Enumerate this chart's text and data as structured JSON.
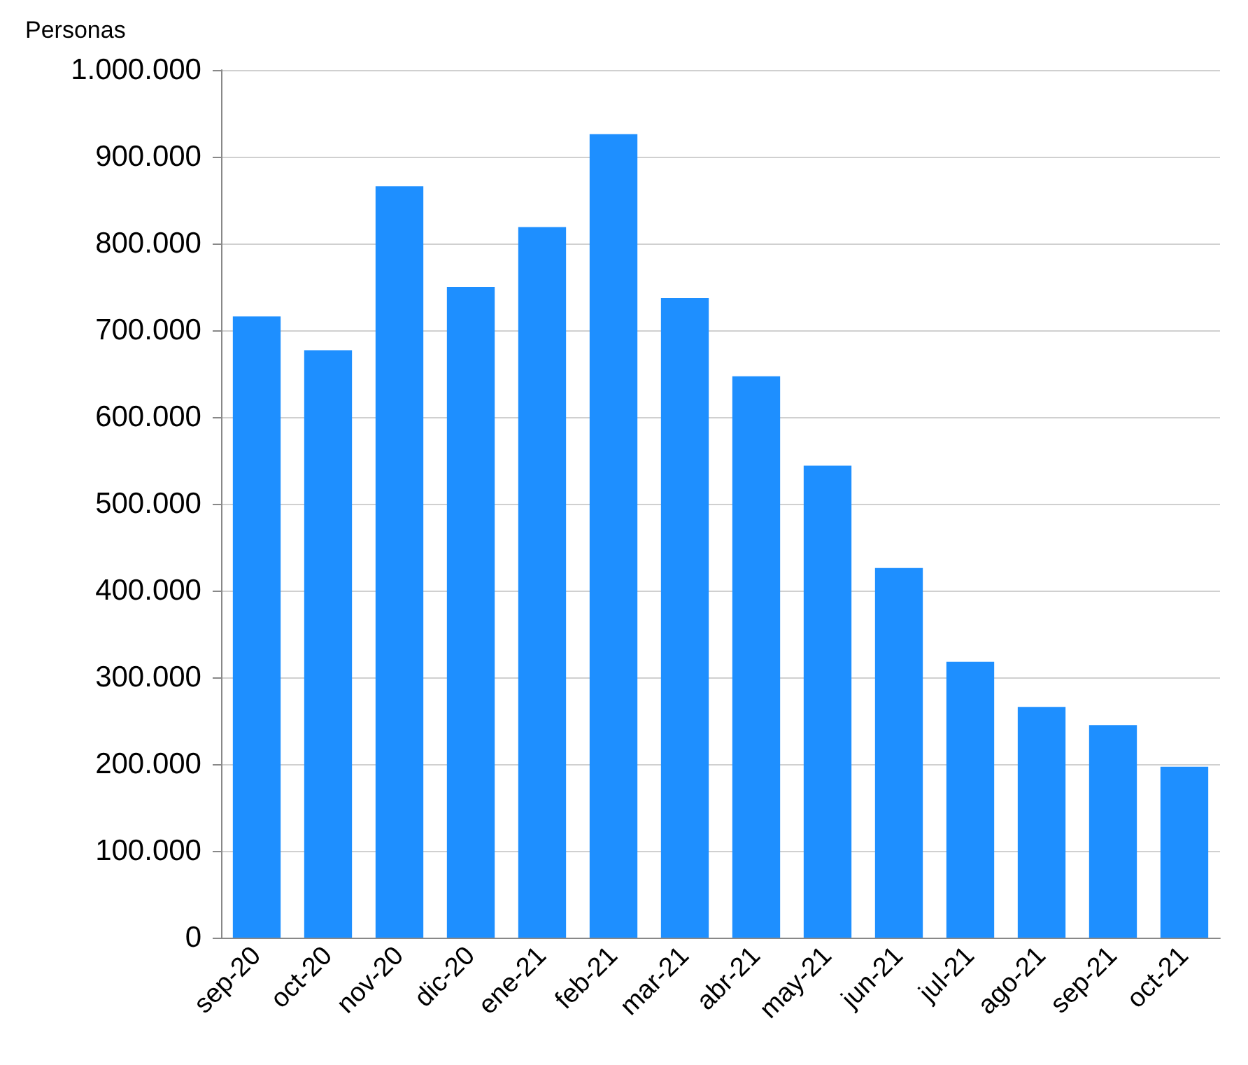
{
  "chart_data": {
    "type": "bar",
    "ylabel": "Personas",
    "categories": [
      "sep-20",
      "oct-20",
      "nov-20",
      "dic-20",
      "ene-21",
      "feb-21",
      "mar-21",
      "abr-21",
      "may-21",
      "jun-21",
      "jul-21",
      "ago-21",
      "sep-21",
      "oct-21"
    ],
    "values": [
      716000,
      677000,
      866000,
      750000,
      819000,
      926000,
      737000,
      647000,
      544000,
      426000,
      318000,
      266000,
      245000,
      197000
    ],
    "color": "#1e8fff",
    "ylim": [
      0,
      1000000
    ],
    "yticks": [
      {
        "value": 0,
        "label": "0"
      },
      {
        "value": 100000,
        "label": "100.000"
      },
      {
        "value": 200000,
        "label": "200.000"
      },
      {
        "value": 300000,
        "label": "300.000"
      },
      {
        "value": 400000,
        "label": "400.000"
      },
      {
        "value": 500000,
        "label": "500.000"
      },
      {
        "value": 600000,
        "label": "600.000"
      },
      {
        "value": 700000,
        "label": "700.000"
      },
      {
        "value": 800000,
        "label": "800.000"
      },
      {
        "value": 900000,
        "label": "900.000"
      },
      {
        "value": 1000000,
        "label": "1.000.000"
      }
    ],
    "grid": "y"
  }
}
